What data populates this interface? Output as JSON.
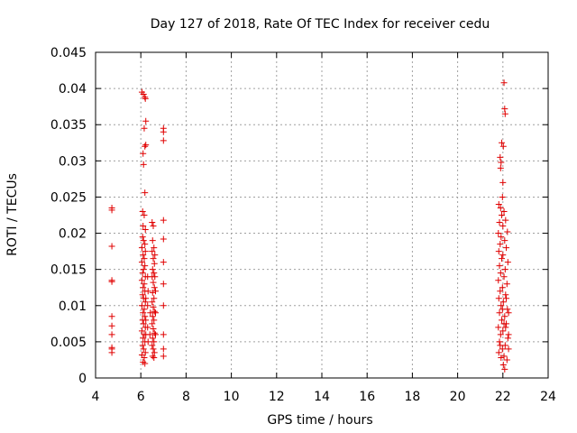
{
  "chart_data": {
    "type": "scatter",
    "title": "Day 127 of 2018, Rate Of TEC Index for receiver cedu",
    "xlabel": "GPS time / hours",
    "ylabel": "ROTI / TECUs",
    "xlim": [
      4,
      24
    ],
    "ylim": [
      0,
      0.045
    ],
    "xticks": [
      4,
      6,
      8,
      10,
      12,
      14,
      16,
      18,
      20,
      22,
      24
    ],
    "yticks": [
      0,
      0.005,
      0.01,
      0.015,
      0.02,
      0.025,
      0.03,
      0.035,
      0.04,
      0.045
    ],
    "xtick_labels": [
      "4",
      "6",
      "8",
      "10",
      "12",
      "14",
      "16",
      "18",
      "20",
      "22",
      "24"
    ],
    "ytick_labels": [
      "0",
      "0.005",
      "0.01",
      "0.015",
      "0.02",
      "0.025",
      "0.03",
      "0.035",
      "0.04",
      "0.045"
    ],
    "grid": true,
    "marker": "+",
    "marker_color": "#e00000",
    "series": [
      {
        "name": "ROTI",
        "points": [
          [
            4.72,
            0.0035
          ],
          [
            4.72,
            0.004
          ],
          [
            4.72,
            0.0042
          ],
          [
            4.72,
            0.006
          ],
          [
            4.72,
            0.0072
          ],
          [
            4.72,
            0.0085
          ],
          [
            4.72,
            0.0133
          ],
          [
            4.72,
            0.0135
          ],
          [
            4.72,
            0.0182
          ],
          [
            4.72,
            0.0232
          ],
          [
            4.72,
            0.0235
          ],
          [
            6.05,
            0.0395
          ],
          [
            6.12,
            0.0392
          ],
          [
            6.18,
            0.0388
          ],
          [
            6.2,
            0.0386
          ],
          [
            6.22,
            0.0355
          ],
          [
            6.15,
            0.0345
          ],
          [
            6.18,
            0.032
          ],
          [
            6.22,
            0.0322
          ],
          [
            6.1,
            0.031
          ],
          [
            6.12,
            0.0295
          ],
          [
            6.18,
            0.0256
          ],
          [
            6.08,
            0.023
          ],
          [
            6.15,
            0.0225
          ],
          [
            6.1,
            0.021
          ],
          [
            6.2,
            0.0205
          ],
          [
            6.08,
            0.0195
          ],
          [
            6.12,
            0.019
          ],
          [
            6.18,
            0.0185
          ],
          [
            6.05,
            0.018
          ],
          [
            6.2,
            0.0175
          ],
          [
            6.1,
            0.017
          ],
          [
            6.15,
            0.0165
          ],
          [
            6.05,
            0.016
          ],
          [
            6.18,
            0.0155
          ],
          [
            6.12,
            0.015
          ],
          [
            6.08,
            0.0145
          ],
          [
            6.2,
            0.014
          ],
          [
            6.05,
            0.0135
          ],
          [
            6.15,
            0.013
          ],
          [
            6.1,
            0.0125
          ],
          [
            6.18,
            0.012
          ],
          [
            6.08,
            0.0115
          ],
          [
            6.12,
            0.011
          ],
          [
            6.2,
            0.0105
          ],
          [
            6.05,
            0.01
          ],
          [
            6.15,
            0.0095
          ],
          [
            6.1,
            0.009
          ],
          [
            6.18,
            0.0085
          ],
          [
            6.08,
            0.008
          ],
          [
            6.12,
            0.0075
          ],
          [
            6.2,
            0.007
          ],
          [
            6.05,
            0.0065
          ],
          [
            6.15,
            0.006
          ],
          [
            6.1,
            0.0055
          ],
          [
            6.18,
            0.005
          ],
          [
            6.08,
            0.0045
          ],
          [
            6.12,
            0.004
          ],
          [
            6.2,
            0.0035
          ],
          [
            6.05,
            0.0032
          ],
          [
            6.15,
            0.0028
          ],
          [
            6.1,
            0.0022
          ],
          [
            6.18,
            0.002
          ],
          [
            6.22,
            0.011
          ],
          [
            6.22,
            0.008
          ],
          [
            6.22,
            0.006
          ],
          [
            6.3,
            0.014
          ],
          [
            6.3,
            0.01
          ],
          [
            6.3,
            0.007
          ],
          [
            6.32,
            0.005
          ],
          [
            6.32,
            0.012
          ],
          [
            6.4,
            0.006
          ],
          [
            6.42,
            0.009
          ],
          [
            6.5,
            0.0215
          ],
          [
            6.55,
            0.021
          ],
          [
            6.52,
            0.019
          ],
          [
            6.58,
            0.018
          ],
          [
            6.5,
            0.0175
          ],
          [
            6.55,
            0.0165
          ],
          [
            6.6,
            0.0158
          ],
          [
            6.52,
            0.015
          ],
          [
            6.58,
            0.0145
          ],
          [
            6.5,
            0.014
          ],
          [
            6.55,
            0.0132
          ],
          [
            6.6,
            0.0125
          ],
          [
            6.52,
            0.0118
          ],
          [
            6.58,
            0.011
          ],
          [
            6.5,
            0.0105
          ],
          [
            6.55,
            0.0098
          ],
          [
            6.6,
            0.0092
          ],
          [
            6.52,
            0.0085
          ],
          [
            6.58,
            0.008
          ],
          [
            6.5,
            0.0075
          ],
          [
            6.55,
            0.0068
          ],
          [
            6.6,
            0.0062
          ],
          [
            6.52,
            0.0055
          ],
          [
            6.58,
            0.005
          ],
          [
            6.5,
            0.0045
          ],
          [
            6.55,
            0.004
          ],
          [
            6.6,
            0.0035
          ],
          [
            6.52,
            0.003
          ],
          [
            6.58,
            0.0028
          ],
          [
            6.65,
            0.012
          ],
          [
            6.65,
            0.009
          ],
          [
            6.65,
            0.006
          ],
          [
            6.62,
            0.017
          ],
          [
            6.62,
            0.014
          ],
          [
            7.0,
            0.0345
          ],
          [
            7.0,
            0.034
          ],
          [
            7.0,
            0.0328
          ],
          [
            7.0,
            0.0218
          ],
          [
            7.0,
            0.0192
          ],
          [
            7.0,
            0.016
          ],
          [
            7.0,
            0.013
          ],
          [
            7.0,
            0.01
          ],
          [
            7.0,
            0.006
          ],
          [
            7.0,
            0.004
          ],
          [
            7.0,
            0.003
          ],
          [
            22.05,
            0.0408
          ],
          [
            22.08,
            0.0372
          ],
          [
            22.1,
            0.0365
          ],
          [
            21.95,
            0.0325
          ],
          [
            22.02,
            0.032
          ],
          [
            21.88,
            0.0305
          ],
          [
            21.92,
            0.0298
          ],
          [
            21.9,
            0.029
          ],
          [
            22.0,
            0.027
          ],
          [
            21.98,
            0.025
          ],
          [
            21.82,
            0.024
          ],
          [
            21.9,
            0.0235
          ],
          [
            22.05,
            0.023
          ],
          [
            21.95,
            0.0225
          ],
          [
            22.12,
            0.0218
          ],
          [
            21.85,
            0.0215
          ],
          [
            22.0,
            0.021
          ],
          [
            22.2,
            0.0202
          ],
          [
            21.8,
            0.02
          ],
          [
            21.92,
            0.0195
          ],
          [
            22.08,
            0.019
          ],
          [
            21.88,
            0.0185
          ],
          [
            22.15,
            0.018
          ],
          [
            21.82,
            0.0175
          ],
          [
            22.0,
            0.017
          ],
          [
            21.95,
            0.0165
          ],
          [
            22.22,
            0.016
          ],
          [
            21.85,
            0.0155
          ],
          [
            22.1,
            0.015
          ],
          [
            21.9,
            0.0145
          ],
          [
            22.05,
            0.014
          ],
          [
            21.8,
            0.0135
          ],
          [
            22.18,
            0.013
          ],
          [
            21.98,
            0.0125
          ],
          [
            21.88,
            0.012
          ],
          [
            22.12,
            0.0115
          ],
          [
            21.82,
            0.011
          ],
          [
            22.02,
            0.0105
          ],
          [
            21.92,
            0.01
          ],
          [
            22.2,
            0.0095
          ],
          [
            21.85,
            0.009
          ],
          [
            22.08,
            0.0085
          ],
          [
            21.95,
            0.008
          ],
          [
            22.15,
            0.0075
          ],
          [
            21.8,
            0.007
          ],
          [
            22.0,
            0.0065
          ],
          [
            21.9,
            0.006
          ],
          [
            22.22,
            0.0055
          ],
          [
            21.85,
            0.005
          ],
          [
            22.1,
            0.0045
          ],
          [
            21.98,
            0.004
          ],
          [
            21.82,
            0.0035
          ],
          [
            22.05,
            0.003
          ],
          [
            22.18,
            0.0025
          ],
          [
            21.92,
            0.0028
          ],
          [
            22.02,
            0.0018
          ],
          [
            22.08,
            0.0012
          ],
          [
            22.25,
            0.009
          ],
          [
            22.25,
            0.006
          ],
          [
            22.25,
            0.004
          ],
          [
            22.15,
            0.011
          ],
          [
            22.12,
            0.007
          ],
          [
            21.98,
            0.0095
          ],
          [
            21.88,
            0.0045
          ],
          [
            22.05,
            0.0075
          ]
        ]
      }
    ]
  }
}
